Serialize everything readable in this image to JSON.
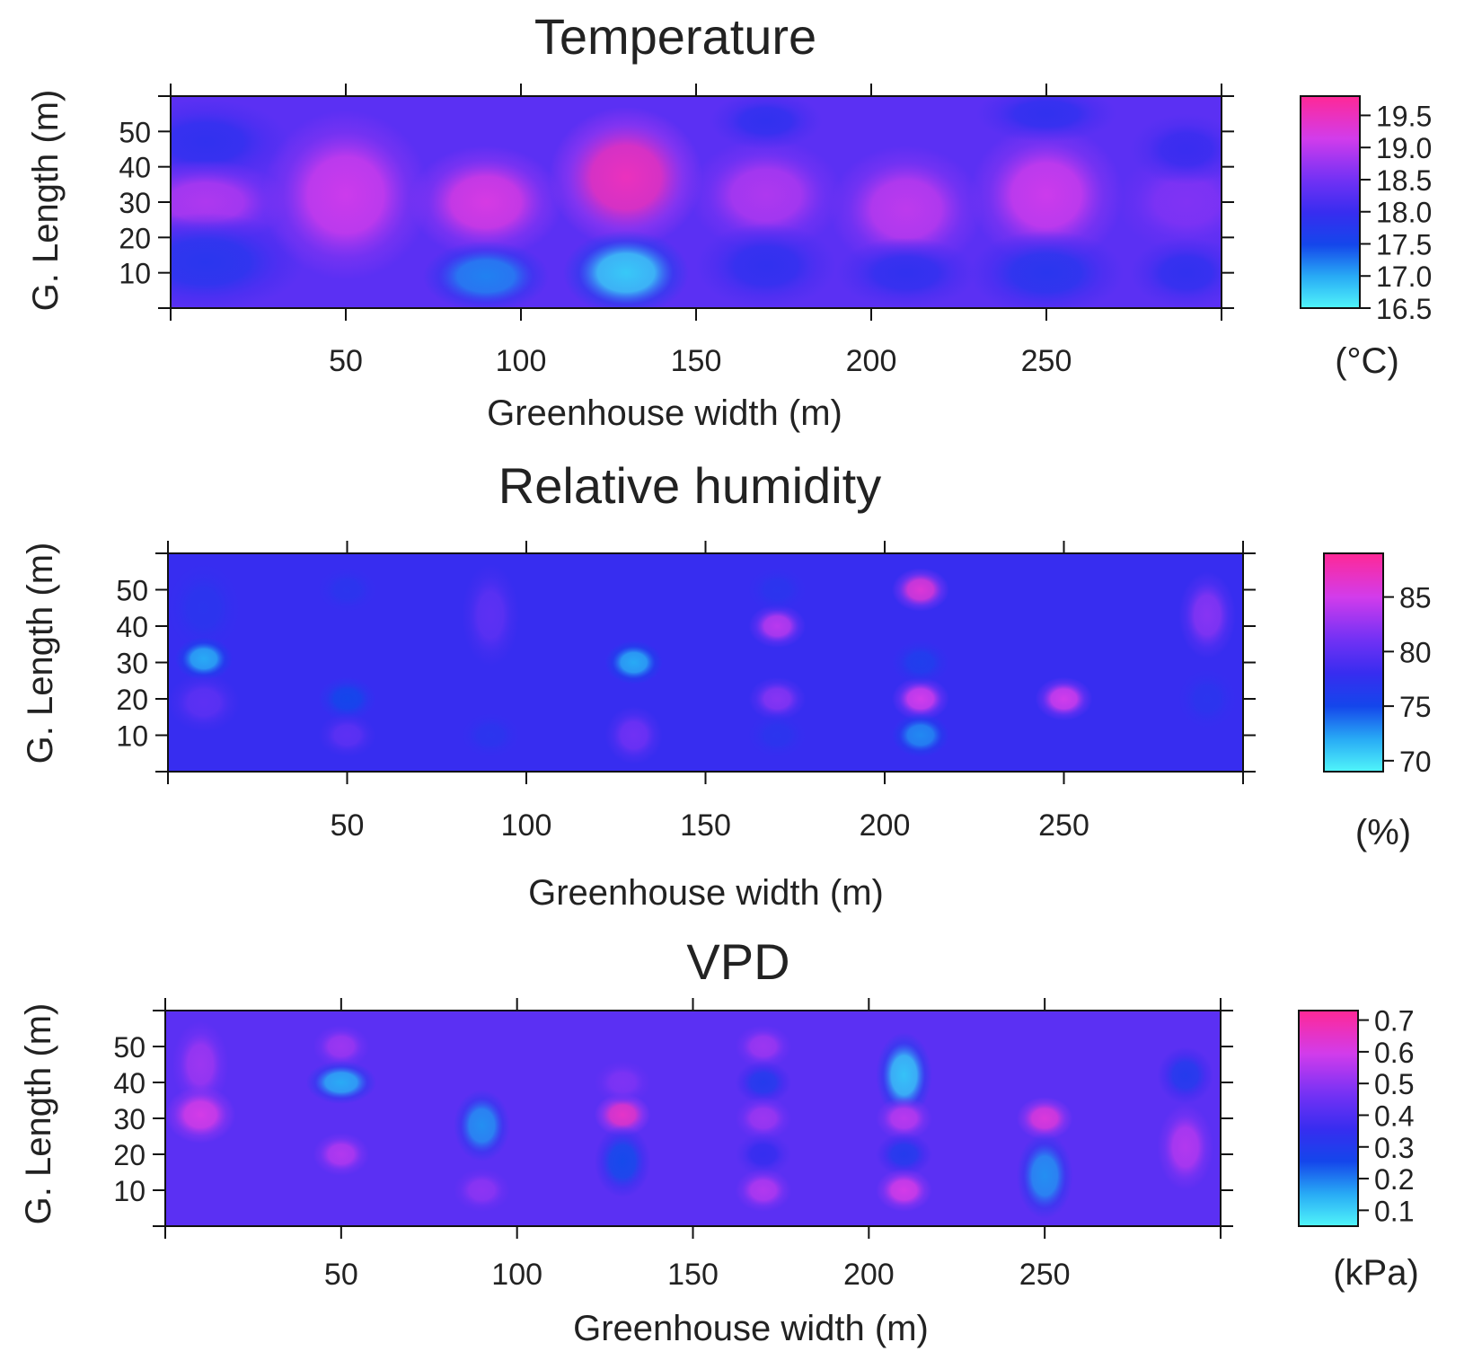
{
  "chart_data": [
    {
      "type": "heatmap",
      "title": "Temperature",
      "xlabel": "Greenhouse width (m)",
      "ylabel": "G. Length (m)",
      "xlim": [
        0,
        300
      ],
      "ylim": [
        0,
        60
      ],
      "xticks": [
        50,
        100,
        150,
        200,
        250
      ],
      "yticks": [
        10,
        20,
        30,
        40,
        50
      ],
      "grid": false,
      "colorbar": {
        "unit": "(°C)",
        "range": [
          16.5,
          19.8
        ],
        "ticks": [
          "19.5",
          "19.0",
          "18.5",
          "18.0",
          "17.5",
          "17.0",
          "16.5"
        ],
        "tick_values": [
          19.5,
          19.0,
          18.5,
          18.0,
          17.5,
          17.0,
          16.5
        ]
      },
      "background_value": 18.3,
      "hotspots": [
        {
          "x": 10,
          "y": 47,
          "value": 17.9,
          "sx": 12,
          "sy": 6
        },
        {
          "x": 10,
          "y": 30,
          "value": 18.9,
          "sx": 12,
          "sy": 6
        },
        {
          "x": 10,
          "y": 13,
          "value": 17.8,
          "sx": 14,
          "sy": 7
        },
        {
          "x": 50,
          "y": 32,
          "value": 19.1,
          "sx": 12,
          "sy": 12
        },
        {
          "x": 90,
          "y": 30,
          "value": 19.2,
          "sx": 11,
          "sy": 8
        },
        {
          "x": 90,
          "y": 9,
          "value": 17.2,
          "sx": 9,
          "sy": 5
        },
        {
          "x": 130,
          "y": 37,
          "value": 19.5,
          "sx": 11,
          "sy": 10
        },
        {
          "x": 130,
          "y": 10,
          "value": 16.8,
          "sx": 9,
          "sy": 6
        },
        {
          "x": 170,
          "y": 32,
          "value": 18.9,
          "sx": 11,
          "sy": 8
        },
        {
          "x": 170,
          "y": 12,
          "value": 17.9,
          "sx": 10,
          "sy": 6
        },
        {
          "x": 170,
          "y": 53,
          "value": 17.9,
          "sx": 8,
          "sy": 4
        },
        {
          "x": 210,
          "y": 28,
          "value": 19.0,
          "sx": 11,
          "sy": 9
        },
        {
          "x": 210,
          "y": 10,
          "value": 17.9,
          "sx": 10,
          "sy": 5
        },
        {
          "x": 250,
          "y": 32,
          "value": 19.1,
          "sx": 11,
          "sy": 10
        },
        {
          "x": 250,
          "y": 10,
          "value": 17.8,
          "sx": 11,
          "sy": 6
        },
        {
          "x": 250,
          "y": 55,
          "value": 17.9,
          "sx": 10,
          "sy": 4
        },
        {
          "x": 290,
          "y": 30,
          "value": 18.6,
          "sx": 10,
          "sy": 7
        },
        {
          "x": 290,
          "y": 45,
          "value": 18.0,
          "sx": 8,
          "sy": 5
        },
        {
          "x": 290,
          "y": 10,
          "value": 17.9,
          "sx": 8,
          "sy": 5
        }
      ]
    },
    {
      "type": "heatmap",
      "title": "Relative humidity",
      "xlabel": "Greenhouse width (m)",
      "ylabel": "G. Length (m)",
      "xlim": [
        0,
        300
      ],
      "ylim": [
        0,
        60
      ],
      "xticks": [
        50,
        100,
        150,
        200,
        250
      ],
      "yticks": [
        10,
        20,
        30,
        40,
        50
      ],
      "grid": false,
      "colorbar": {
        "unit": "(%)",
        "range": [
          69,
          89
        ],
        "ticks": [
          "85",
          "80",
          "75",
          "70"
        ],
        "tick_values": [
          85,
          80,
          75,
          70
        ]
      },
      "background_value": 78,
      "hotspots": [
        {
          "x": 10,
          "y": 45,
          "value": 77,
          "sx": 5,
          "sy": 6
        },
        {
          "x": 10,
          "y": 31,
          "value": 72,
          "sx": 4,
          "sy": 3
        },
        {
          "x": 10,
          "y": 19,
          "value": 80,
          "sx": 5,
          "sy": 4
        },
        {
          "x": 50,
          "y": 50,
          "value": 77,
          "sx": 4,
          "sy": 3
        },
        {
          "x": 50,
          "y": 20,
          "value": 75,
          "sx": 4,
          "sy": 3
        },
        {
          "x": 50,
          "y": 10,
          "value": 80,
          "sx": 4,
          "sy": 3
        },
        {
          "x": 90,
          "y": 43,
          "value": 80,
          "sx": 4,
          "sy": 7
        },
        {
          "x": 90,
          "y": 10,
          "value": 77,
          "sx": 4,
          "sy": 3
        },
        {
          "x": 130,
          "y": 30,
          "value": 72,
          "sx": 4,
          "sy": 3
        },
        {
          "x": 130,
          "y": 10,
          "value": 81,
          "sx": 4,
          "sy": 4
        },
        {
          "x": 170,
          "y": 40,
          "value": 84,
          "sx": 4,
          "sy": 3
        },
        {
          "x": 170,
          "y": 20,
          "value": 82,
          "sx": 4,
          "sy": 3
        },
        {
          "x": 170,
          "y": 50,
          "value": 77,
          "sx": 4,
          "sy": 3
        },
        {
          "x": 170,
          "y": 10,
          "value": 77,
          "sx": 4,
          "sy": 3
        },
        {
          "x": 210,
          "y": 50,
          "value": 86,
          "sx": 4,
          "sy": 3
        },
        {
          "x": 210,
          "y": 20,
          "value": 85,
          "sx": 4,
          "sy": 3
        },
        {
          "x": 210,
          "y": 30,
          "value": 76,
          "sx": 4,
          "sy": 3
        },
        {
          "x": 210,
          "y": 10,
          "value": 73,
          "sx": 4,
          "sy": 3
        },
        {
          "x": 250,
          "y": 20,
          "value": 85,
          "sx": 4,
          "sy": 3
        },
        {
          "x": 290,
          "y": 43,
          "value": 82,
          "sx": 4,
          "sy": 6
        },
        {
          "x": 290,
          "y": 20,
          "value": 77,
          "sx": 4,
          "sy": 4
        }
      ]
    },
    {
      "type": "heatmap",
      "title": "VPD",
      "xlabel": "Greenhouse width (m)",
      "ylabel": "G. Length (m)",
      "xlim": [
        0,
        300
      ],
      "ylim": [
        0,
        60
      ],
      "xticks": [
        50,
        100,
        150,
        200,
        250
      ],
      "yticks": [
        10,
        20,
        30,
        40,
        50
      ],
      "grid": false,
      "colorbar": {
        "unit": "(kPa)",
        "range": [
          0.05,
          0.73
        ],
        "ticks": [
          "0.7",
          "0.6",
          "0.5",
          "0.4",
          "0.3",
          "0.2",
          "0.1"
        ],
        "tick_values": [
          0.7,
          0.6,
          0.5,
          0.4,
          0.3,
          0.2,
          0.1
        ]
      },
      "background_value": 0.42,
      "hotspots": [
        {
          "x": 10,
          "y": 45,
          "value": 0.52,
          "sx": 4,
          "sy": 6
        },
        {
          "x": 10,
          "y": 31,
          "value": 0.6,
          "sx": 5,
          "sy": 4
        },
        {
          "x": 50,
          "y": 50,
          "value": 0.52,
          "sx": 4,
          "sy": 3
        },
        {
          "x": 50,
          "y": 40,
          "value": 0.15,
          "sx": 5,
          "sy": 3
        },
        {
          "x": 50,
          "y": 20,
          "value": 0.55,
          "sx": 4,
          "sy": 3
        },
        {
          "x": 90,
          "y": 28,
          "value": 0.18,
          "sx": 4,
          "sy": 5
        },
        {
          "x": 90,
          "y": 10,
          "value": 0.5,
          "sx": 4,
          "sy": 3
        },
        {
          "x": 130,
          "y": 31,
          "value": 0.65,
          "sx": 4,
          "sy": 3
        },
        {
          "x": 130,
          "y": 40,
          "value": 0.48,
          "sx": 4,
          "sy": 3
        },
        {
          "x": 130,
          "y": 18,
          "value": 0.25,
          "sx": 4,
          "sy": 5
        },
        {
          "x": 170,
          "y": 50,
          "value": 0.52,
          "sx": 4,
          "sy": 3
        },
        {
          "x": 170,
          "y": 40,
          "value": 0.3,
          "sx": 4,
          "sy": 3
        },
        {
          "x": 170,
          "y": 30,
          "value": 0.52,
          "sx": 4,
          "sy": 3
        },
        {
          "x": 170,
          "y": 20,
          "value": 0.35,
          "sx": 4,
          "sy": 3
        },
        {
          "x": 170,
          "y": 10,
          "value": 0.55,
          "sx": 4,
          "sy": 3
        },
        {
          "x": 210,
          "y": 42,
          "value": 0.12,
          "sx": 4,
          "sy": 6
        },
        {
          "x": 210,
          "y": 30,
          "value": 0.56,
          "sx": 4,
          "sy": 3
        },
        {
          "x": 210,
          "y": 20,
          "value": 0.3,
          "sx": 4,
          "sy": 3
        },
        {
          "x": 210,
          "y": 10,
          "value": 0.6,
          "sx": 4,
          "sy": 3
        },
        {
          "x": 250,
          "y": 30,
          "value": 0.62,
          "sx": 4,
          "sy": 3
        },
        {
          "x": 250,
          "y": 14,
          "value": 0.18,
          "sx": 4,
          "sy": 6
        },
        {
          "x": 290,
          "y": 42,
          "value": 0.3,
          "sx": 4,
          "sy": 4
        },
        {
          "x": 290,
          "y": 22,
          "value": 0.55,
          "sx": 4,
          "sy": 6
        }
      ]
    }
  ]
}
